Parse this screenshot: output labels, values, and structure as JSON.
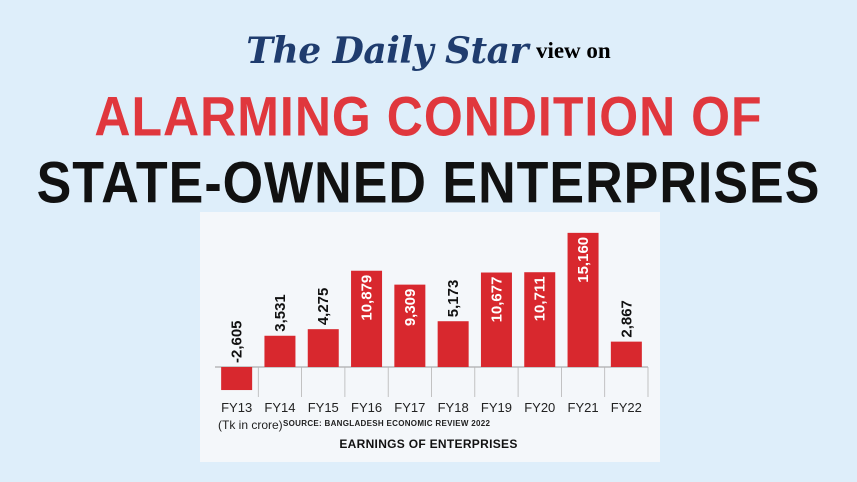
{
  "masthead": {
    "logo": "The Daily Star",
    "suffix": "view on"
  },
  "headline": {
    "line1": "ALARMING CONDITION OF",
    "line2": "STATE-OWNED ENTERPRISES"
  },
  "colors": {
    "headline_accent": "#e0373d",
    "bar": "#d8282e",
    "logo": "#1f3c6e"
  },
  "chart_data": {
    "type": "bar",
    "categories": [
      "FY13",
      "FY14",
      "FY15",
      "FY16",
      "FY17",
      "FY18",
      "FY19",
      "FY20",
      "FY21",
      "FY22"
    ],
    "values": [
      -2605,
      3531,
      4275,
      10879,
      9309,
      5173,
      10677,
      10711,
      15160,
      2867
    ],
    "data_labels": [
      "-2,605",
      "3,531",
      "4,275",
      "10,879",
      "9,309",
      "5,173",
      "10,677",
      "10,711",
      "15,160",
      "2,867"
    ],
    "unit_label": "(Tk in crore)",
    "source": "SOURCE: BANGLADESH ECONOMIC REVIEW 2022",
    "caption": "EARNINGS OF ENTERPRISES",
    "labels_inside": [
      false,
      false,
      false,
      true,
      true,
      false,
      true,
      true,
      true,
      false
    ],
    "ylim": [
      -3500,
      16500
    ]
  }
}
